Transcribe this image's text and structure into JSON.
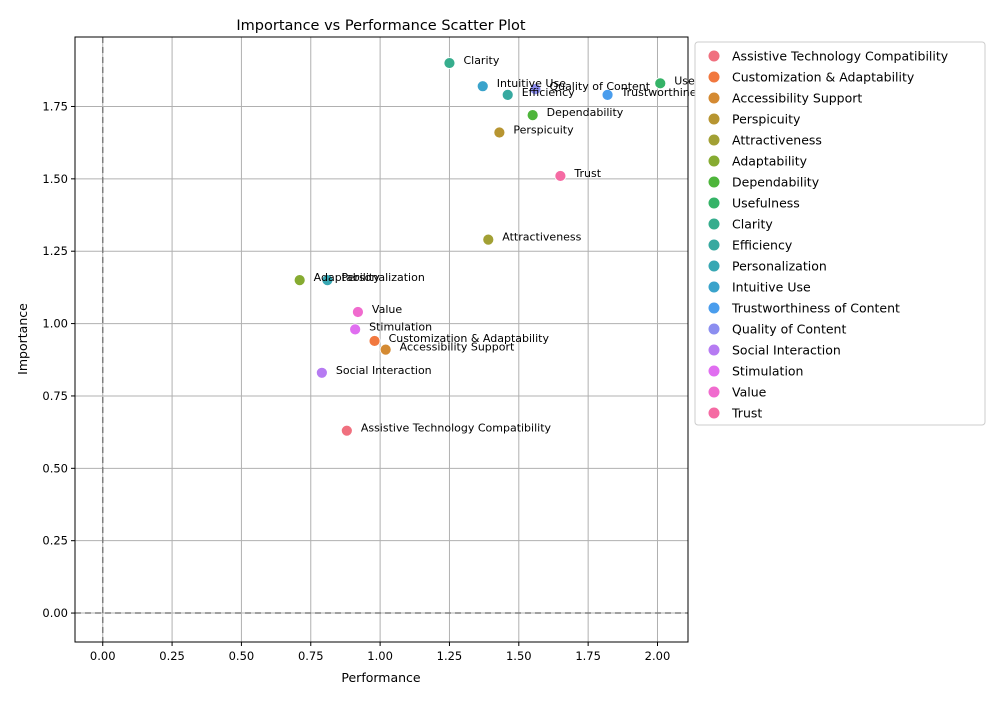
{
  "chart_data": {
    "type": "scatter",
    "title": "Importance vs Performance Scatter Plot",
    "xlabel": "Performance",
    "ylabel": "Importance",
    "xlim": [
      -0.1,
      2.11
    ],
    "ylim": [
      -0.1,
      1.99
    ],
    "xticks": [
      "0.00",
      "0.25",
      "0.50",
      "0.75",
      "1.00",
      "1.25",
      "1.50",
      "1.75",
      "2.00"
    ],
    "yticks": [
      "0.00",
      "0.25",
      "0.50",
      "0.75",
      "1.00",
      "1.25",
      "1.50",
      "1.75"
    ],
    "grid": true,
    "reference_lines": {
      "x": 0,
      "y": 0,
      "style": "dashed",
      "color": "#808080"
    },
    "legend_position": "outside-right",
    "points": [
      {
        "name": "Assistive Technology Compatibility",
        "x": 0.88,
        "y": 0.63,
        "color": "#f0707f"
      },
      {
        "name": "Customization & Adaptability",
        "x": 0.98,
        "y": 0.94,
        "color": "#f1783f"
      },
      {
        "name": "Accessibility Support",
        "x": 1.02,
        "y": 0.91,
        "color": "#d48a32"
      },
      {
        "name": "Perspicuity",
        "x": 1.43,
        "y": 1.66,
        "color": "#b79531"
      },
      {
        "name": "Attractiveness",
        "x": 1.39,
        "y": 1.29,
        "color": "#a2a034"
      },
      {
        "name": "Adaptability",
        "x": 0.71,
        "y": 1.15,
        "color": "#86ab31"
      },
      {
        "name": "Dependability",
        "x": 1.55,
        "y": 1.72,
        "color": "#4eb53b"
      },
      {
        "name": "Usefulness",
        "x": 2.01,
        "y": 1.83,
        "color": "#35b367"
      },
      {
        "name": "Clarity",
        "x": 1.25,
        "y": 1.9,
        "color": "#36ad8d"
      },
      {
        "name": "Efficiency",
        "x": 1.46,
        "y": 1.79,
        "color": "#37a9a0"
      },
      {
        "name": "Personalization",
        "x": 0.81,
        "y": 1.15,
        "color": "#38a7b3"
      },
      {
        "name": "Intuitive Use",
        "x": 1.37,
        "y": 1.82,
        "color": "#3aa3cb"
      },
      {
        "name": "Trustworthiness of Content",
        "x": 1.82,
        "y": 1.79,
        "color": "#4a9ded"
      },
      {
        "name": "Quality of Content",
        "x": 1.56,
        "y": 1.81,
        "color": "#8c8ef0"
      },
      {
        "name": "Social Interaction",
        "x": 0.79,
        "y": 0.83,
        "color": "#b67bf2"
      },
      {
        "name": "Stimulation",
        "x": 0.91,
        "y": 0.98,
        "color": "#e06ef0"
      },
      {
        "name": "Value",
        "x": 0.92,
        "y": 1.04,
        "color": "#f06bce"
      },
      {
        "name": "Trust",
        "x": 1.65,
        "y": 1.51,
        "color": "#f56aa3"
      }
    ]
  }
}
